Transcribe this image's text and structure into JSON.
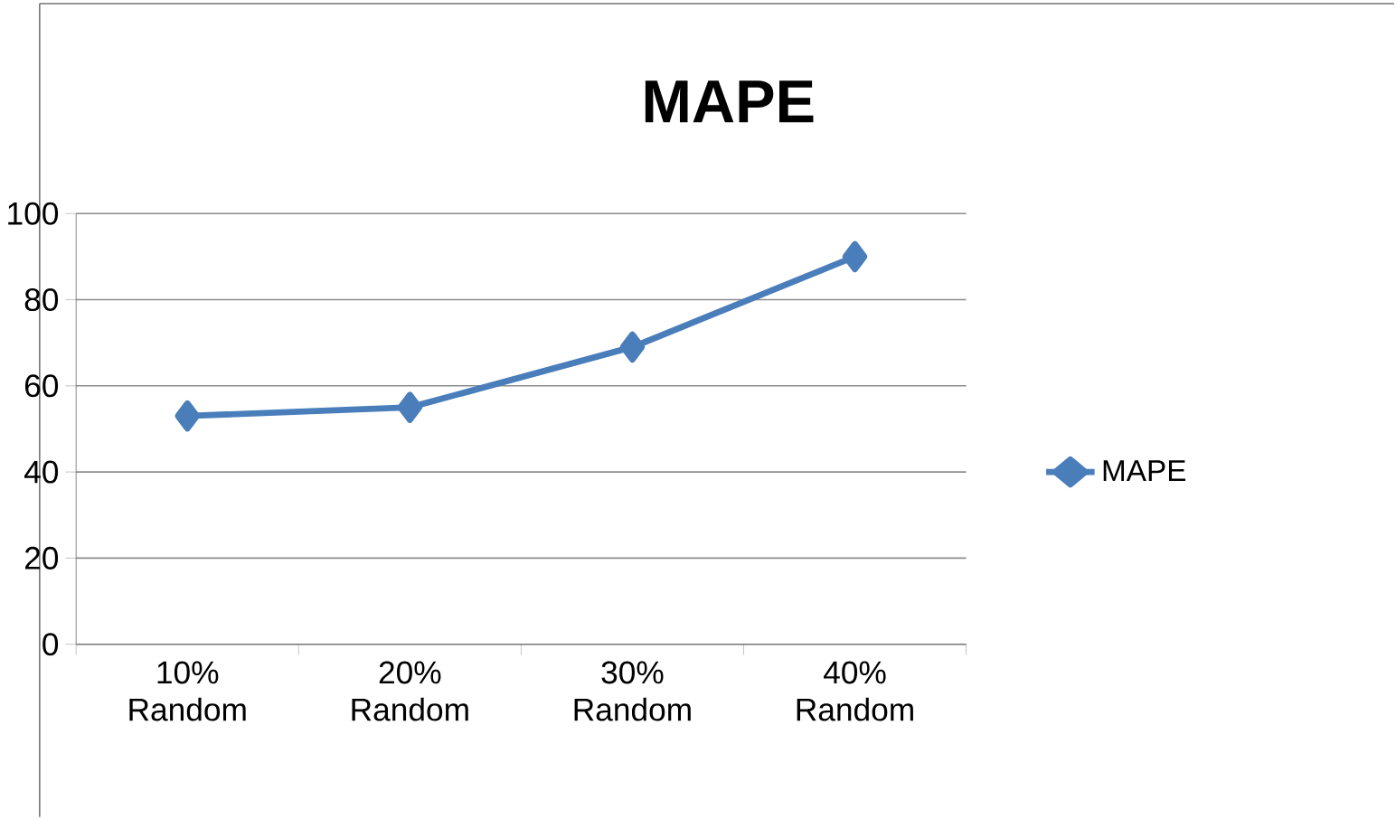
{
  "chart_data": {
    "type": "line",
    "title": "MAPE",
    "categories": [
      "10% Random",
      "20% Random",
      "30% Random",
      "40% Random"
    ],
    "series": [
      {
        "name": "MAPE",
        "color": "#4a7ebb",
        "values": [
          53,
          55,
          69,
          90
        ]
      }
    ],
    "ylim": [
      0,
      100
    ],
    "yticks": [
      0,
      20,
      40,
      60,
      80,
      100
    ],
    "grid": "y",
    "legend": "right",
    "marker": "diamond",
    "line_style": "solid"
  }
}
